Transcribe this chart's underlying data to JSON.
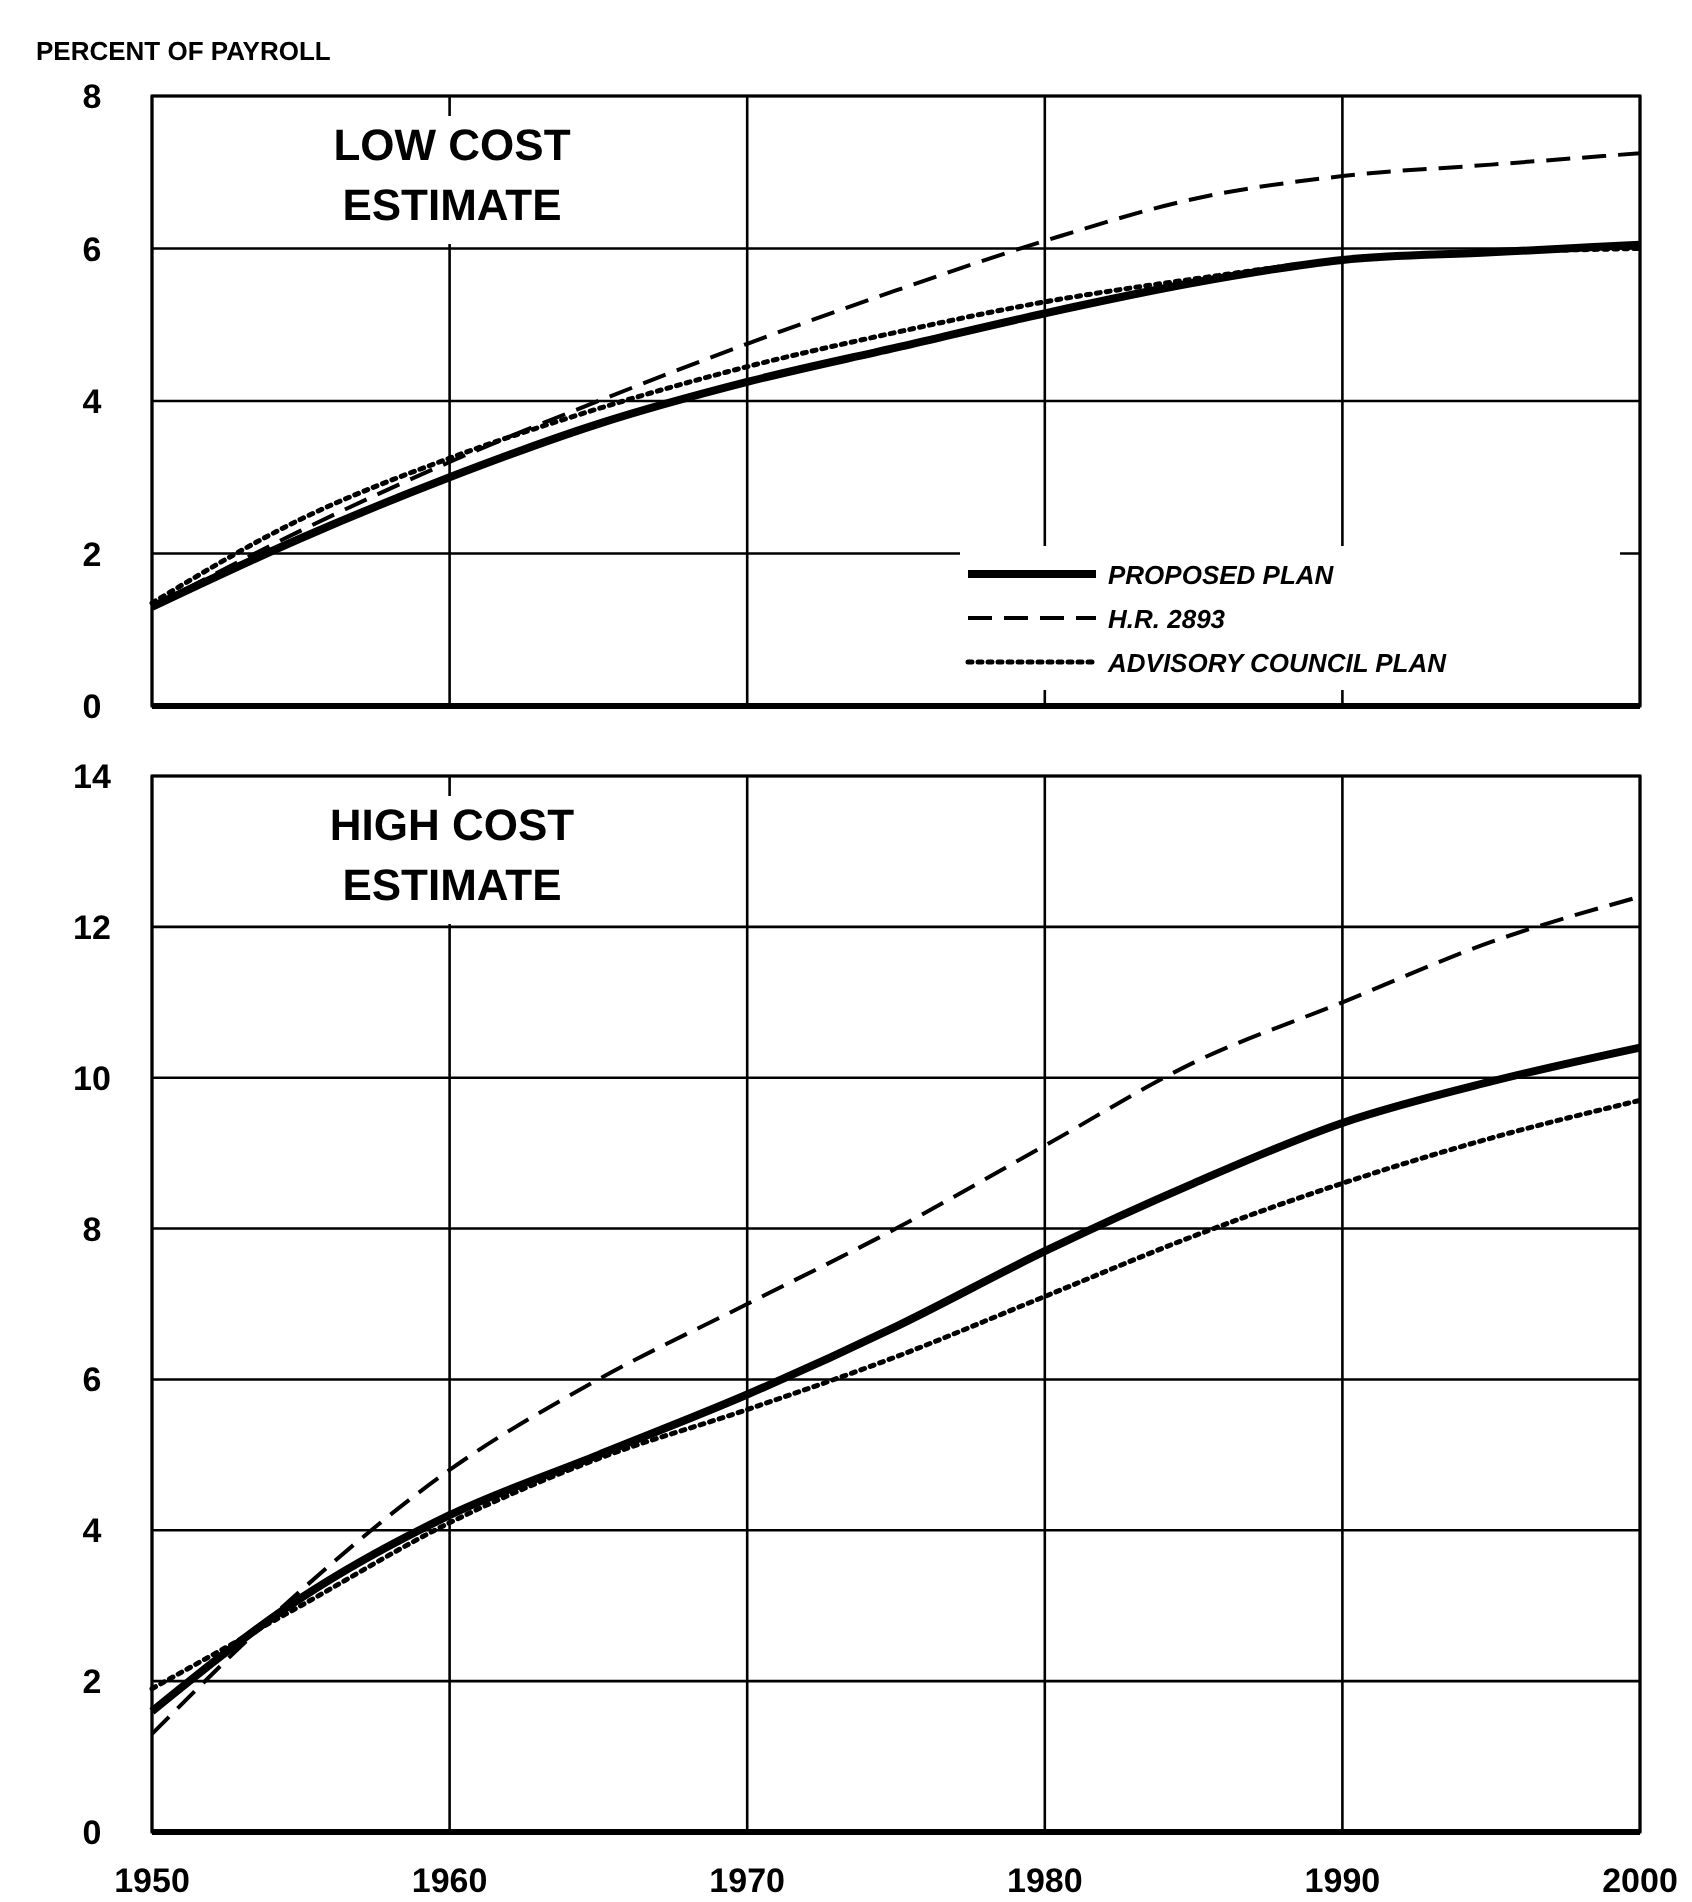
{
  "chart_data": [
    {
      "type": "line",
      "title": "LOW COST ESTIMATE",
      "ylabel": "PERCENT OF PAYROLL",
      "x": [
        1950,
        1955,
        1960,
        1965,
        1970,
        1975,
        1980,
        1985,
        1990,
        1995,
        2000
      ],
      "xlim": [
        1950,
        2000
      ],
      "xticks": [
        1950,
        1960,
        1970,
        1980,
        1990,
        2000
      ],
      "ylim": [
        0,
        8
      ],
      "yticks": [
        0,
        2,
        4,
        6,
        8
      ],
      "tick_labels": "y",
      "grid": true,
      "legend": "bottom right",
      "series": [
        {
          "name": "PROPOSED PLAN",
          "color": "#000000",
          "line_style": "solid",
          "values": [
            1.3,
            2.2,
            3.0,
            3.7,
            4.25,
            4.7,
            5.15,
            5.55,
            5.85,
            5.95,
            6.05
          ]
        },
        {
          "name": "H.R. 2893",
          "color": "#000000",
          "line_style": "dashed",
          "values": [
            1.3,
            2.3,
            3.2,
            4.0,
            4.75,
            5.45,
            6.1,
            6.65,
            6.95,
            7.1,
            7.25
          ]
        },
        {
          "name": "ADVISORY COUNCIL PLAN",
          "color": "#000000",
          "line_style": "dotted",
          "values": [
            1.35,
            2.45,
            3.25,
            3.9,
            4.45,
            4.9,
            5.3,
            5.6,
            5.85,
            5.95,
            6.0
          ]
        }
      ]
    },
    {
      "type": "line",
      "title": "HIGH COST ESTIMATE",
      "x": [
        1950,
        1955,
        1960,
        1965,
        1970,
        1975,
        1980,
        1985,
        1990,
        1995,
        2000
      ],
      "xlim": [
        1950,
        2000
      ],
      "xticks": [
        1950,
        1960,
        1970,
        1980,
        1990,
        2000
      ],
      "ylim": [
        0,
        14
      ],
      "yticks": [
        0,
        2,
        4,
        6,
        8,
        10,
        12,
        14
      ],
      "grid": true,
      "series": [
        {
          "color": "#000000",
          "line_style": "solid",
          "values": [
            1.6,
            3.1,
            4.2,
            5.0,
            5.8,
            6.7,
            7.7,
            8.6,
            9.4,
            9.95,
            10.4
          ]
        },
        {
          "color": "#000000",
          "line_style": "dashed",
          "values": [
            1.3,
            3.2,
            4.8,
            6.0,
            7.0,
            8.0,
            9.1,
            10.2,
            11.0,
            11.8,
            12.4
          ]
        },
        {
          "color": "#000000",
          "line_style": "dotted",
          "values": [
            1.9,
            3.0,
            4.1,
            4.95,
            5.6,
            6.3,
            7.1,
            7.9,
            8.6,
            9.2,
            9.7
          ]
        }
      ]
    }
  ]
}
